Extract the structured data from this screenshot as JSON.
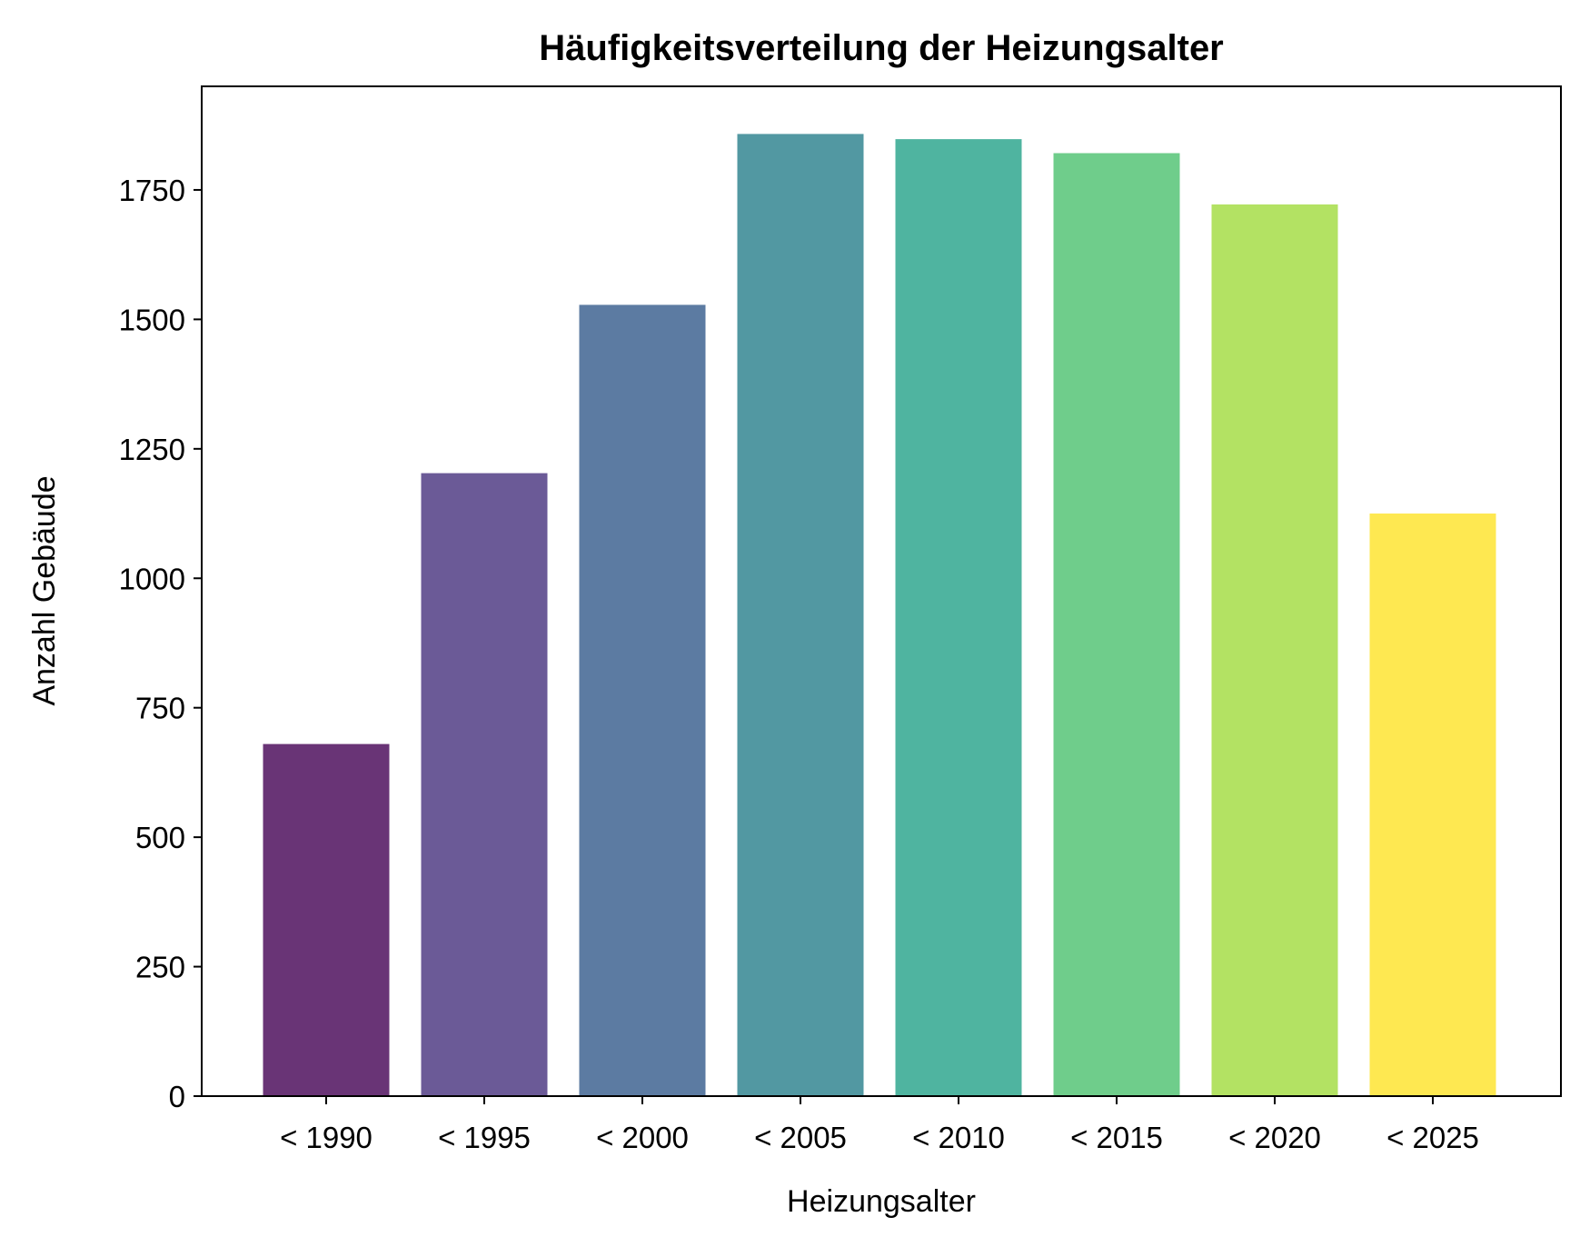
{
  "chart_data": {
    "type": "bar",
    "title": "Häufigkeitsverteilung der Heizungsalter",
    "xlabel": "Heizungsalter",
    "ylabel": "Anzahl Gebäude",
    "categories": [
      "< 1990",
      "< 1995",
      "< 2000",
      "< 2005",
      "< 2010",
      "< 2015",
      "< 2020",
      "< 2025"
    ],
    "values": [
      680,
      1203,
      1528,
      1858,
      1848,
      1821,
      1722,
      1125
    ],
    "colors": [
      "#693476",
      "#6b5a97",
      "#5c7ba2",
      "#5298a2",
      "#4fb4a0",
      "#6fcd8b",
      "#b3e263",
      "#fee851"
    ],
    "yticks": [
      0,
      250,
      500,
      750,
      1000,
      1250,
      1500,
      1750
    ],
    "ylim": [
      0,
      1950
    ],
    "grid": false,
    "legend": null
  }
}
